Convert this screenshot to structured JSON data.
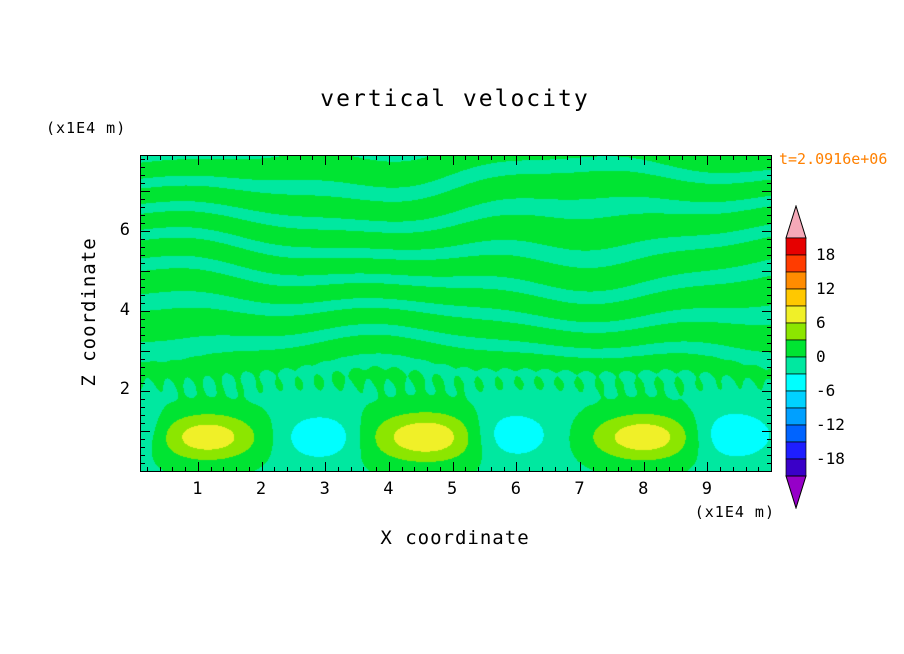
{
  "title": "vertical velocity",
  "timestamp": "t=2.0916e+06",
  "timestamp_color": "#ff8000",
  "x_axis": {
    "label": "X coordinate",
    "unit": "(x1E4 m)",
    "labeled_ticks": [
      {
        "value": 1,
        "label": "1"
      },
      {
        "value": 2,
        "label": "2"
      },
      {
        "value": 3,
        "label": "3"
      },
      {
        "value": 4,
        "label": "4"
      },
      {
        "value": 5,
        "label": "5"
      },
      {
        "value": 6,
        "label": "6"
      },
      {
        "value": 7,
        "label": "7"
      },
      {
        "value": 8,
        "label": "8"
      },
      {
        "value": 9,
        "label": "9"
      }
    ],
    "major_ticks": [
      1,
      2,
      3,
      4,
      5,
      6,
      7,
      8,
      9
    ],
    "minor_step": 0.2
  },
  "z_axis": {
    "label": "Z coordinate",
    "unit": "(x1E4 m)",
    "labeled_ticks": [
      {
        "value": 2,
        "label": "2"
      },
      {
        "value": 4,
        "label": "4"
      },
      {
        "value": 6,
        "label": "6"
      }
    ],
    "major_ticks": [
      1,
      2,
      3,
      4,
      5,
      6,
      7
    ],
    "minor_step": 0.2
  },
  "colorbar": {
    "labels": [
      18,
      12,
      6,
      0,
      -6,
      -12,
      -18
    ],
    "segment_colors": [
      "#3a00c8",
      "#1e1eff",
      "#0064ff",
      "#00a0ff",
      "#00d2ff",
      "#00ffff",
      "#00e8a0",
      "#00e432",
      "#8ce600",
      "#f0f028",
      "#ffc800",
      "#ff8c00",
      "#ff3c00",
      "#e60000"
    ],
    "under_color": "#9600c8",
    "over_color": "#f5a9b8"
  },
  "chart_data": {
    "type": "heatmap",
    "title": "vertical velocity",
    "xlabel": "X coordinate (x1E4 m)",
    "ylabel": "Z coordinate (x1E4 m)",
    "time_annotation": "t=2.0916e+06",
    "x_range": [
      0.1,
      9.99
    ],
    "z_range": [
      0,
      7.9
    ],
    "levels": [
      -21,
      -18,
      -15,
      -12,
      -9,
      -6,
      -3,
      0,
      3,
      6,
      9,
      12,
      15,
      18,
      21
    ],
    "colorbar_range": [
      -21,
      21
    ],
    "legend_position": "right",
    "description": "Filled contour field: near-zero velocity with thin wavy horizontal streaks (values between -3 and 3) above z=2, and a row of convective cells near the bottom boundary with positive updrafts (yellow, up to ~8) alternating with negative downdrafts (cyan, down to ~-7).",
    "streaks": {
      "amplitude": 1.7,
      "bias": 0.6,
      "z_start": 2.0,
      "z_ramp": 0.7,
      "z_freq": 7.5,
      "warp1": 2.0,
      "wx1": 0.55,
      "wz1": 0.9,
      "warp2": 1.1,
      "wx2": 1.3,
      "wz2": -0.8,
      "warp3": 0.5,
      "wx3": 2.6,
      "scratch_amp": 0.8,
      "scratch_z": 2.3,
      "scratch_sz": 0.35,
      "scratch_freq": 20
    },
    "lower_bg": {
      "amp": -1.2,
      "z": 0.85,
      "sz": 1.1
    },
    "cells": [
      {
        "x": 1.15,
        "z": 0.85,
        "sx": 0.85,
        "sz": 0.62,
        "amp": 9.2
      },
      {
        "x": 2.95,
        "z": 0.85,
        "sx": 0.6,
        "sz": 0.55,
        "amp": -5.4
      },
      {
        "x": 4.6,
        "z": 0.85,
        "sx": 1.0,
        "sz": 0.65,
        "amp": 9.8
      },
      {
        "x": 5.85,
        "z": 0.9,
        "sx": 0.65,
        "sz": 0.6,
        "amp": -5.6
      },
      {
        "x": 8.0,
        "z": 0.85,
        "sx": 0.9,
        "sz": 0.62,
        "amp": 9.4
      },
      {
        "x": 9.35,
        "z": 0.9,
        "sx": 0.6,
        "sz": 0.6,
        "amp": -5.4
      },
      {
        "x": 0.05,
        "z": 1.0,
        "sx": 0.4,
        "sz": 0.6,
        "amp": -3.2
      }
    ]
  }
}
